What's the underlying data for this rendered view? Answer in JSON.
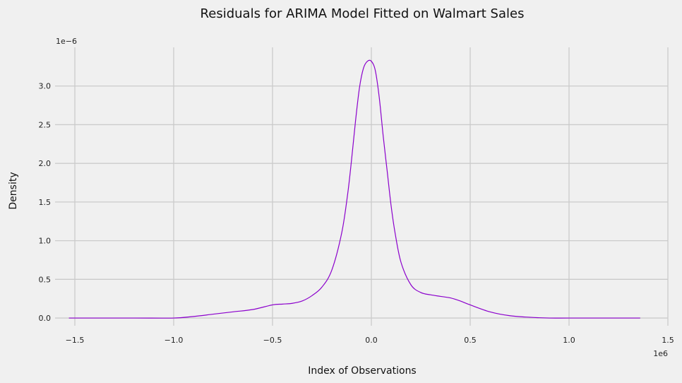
{
  "chart_data": {
    "type": "line",
    "title": "Residuals for ARIMA Model Fitted on Walmart Sales",
    "xlabel": "Index of Observations",
    "ylabel": "Density",
    "x_offset_label": "1e6",
    "y_offset_label": "1e−6",
    "xlim": [
      -1.6,
      1.5
    ],
    "ylim": [
      -0.1,
      3.5
    ],
    "x_ticks": [
      -1.5,
      -1.0,
      -0.5,
      0.0,
      0.5,
      1.0,
      1.5
    ],
    "x_tick_labels": [
      "−1.5",
      "−1.0",
      "−0.5",
      "0.0",
      "0.5",
      "1.0",
      "1.5"
    ],
    "y_ticks": [
      0.0,
      0.5,
      1.0,
      1.5,
      2.0,
      2.5,
      3.0
    ],
    "y_tick_labels": [
      "0.0",
      "0.5",
      "1.0",
      "1.5",
      "2.0",
      "2.5",
      "3.0"
    ],
    "grid": true,
    "line_color": "#8b00cc",
    "series": [
      {
        "x": [
          -1.53,
          -1.2,
          -1.0,
          -0.9,
          -0.8,
          -0.7,
          -0.6,
          -0.5,
          -0.45,
          -0.4,
          -0.35,
          -0.3,
          -0.25,
          -0.2,
          -0.15,
          -0.12,
          -0.1,
          -0.08,
          -0.06,
          -0.04,
          -0.02,
          0.0,
          0.02,
          0.04,
          0.06,
          0.08,
          0.1,
          0.12,
          0.15,
          0.2,
          0.25,
          0.3,
          0.35,
          0.4,
          0.45,
          0.5,
          0.6,
          0.7,
          0.8,
          0.9,
          1.0,
          1.2,
          1.36
        ],
        "y": [
          0.0,
          0.0,
          0.0,
          0.02,
          0.05,
          0.08,
          0.11,
          0.17,
          0.18,
          0.19,
          0.22,
          0.29,
          0.4,
          0.62,
          1.1,
          1.6,
          2.05,
          2.55,
          2.98,
          3.23,
          3.32,
          3.32,
          3.2,
          2.85,
          2.35,
          1.9,
          1.45,
          1.1,
          0.72,
          0.43,
          0.33,
          0.3,
          0.28,
          0.26,
          0.22,
          0.17,
          0.08,
          0.03,
          0.01,
          0.0,
          0.0,
          0.0,
          0.0
        ]
      }
    ]
  }
}
